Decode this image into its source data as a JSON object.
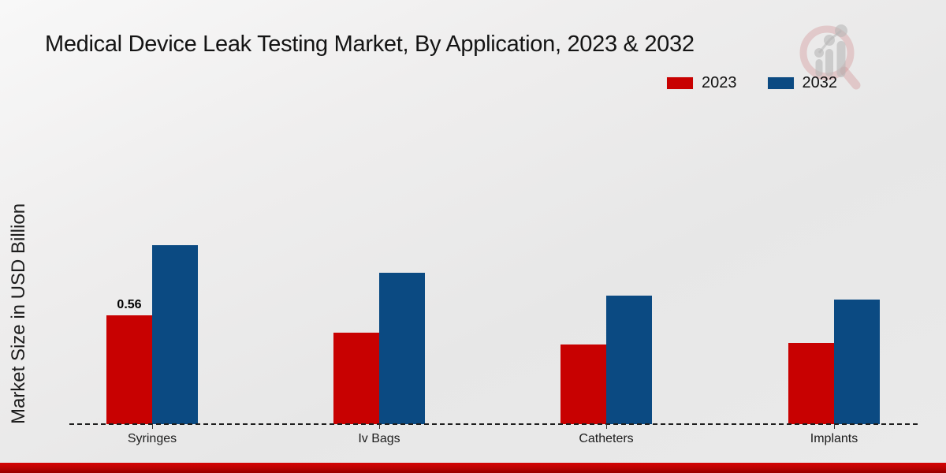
{
  "header": {
    "title": "Medical Device Leak Testing Market, By Application, 2023 & 2032"
  },
  "icons": {
    "watermark": "magnifier-bar-chart-watermark"
  },
  "colors": {
    "series_2023": "#c80101",
    "series_2032": "#0b4a82",
    "footer_accent_top": "#d40404",
    "footer_accent_bottom": "#960000",
    "axis_line": "#1e1e1e",
    "background": "#eaeaea"
  },
  "chart_data": {
    "type": "bar",
    "title": "Medical Device Leak Testing Market, By Application, 2023 & 2032",
    "categories": [
      "Syringes",
      "Iv Bags",
      "Catheters",
      "Implants"
    ],
    "series": [
      {
        "name": "2023",
        "color": "#c80101",
        "values": [
          0.56,
          0.47,
          0.41,
          0.42
        ]
      },
      {
        "name": "2032",
        "color": "#0b4a82",
        "values": [
          0.92,
          0.78,
          0.66,
          0.64
        ]
      }
    ],
    "data_labels": [
      {
        "series_index": 0,
        "category_index": 0,
        "text": "0.56"
      }
    ],
    "xlabel": "",
    "ylabel": "Market Size in USD Billion",
    "ylim": [
      0,
      1.0
    ],
    "grid": false,
    "y_axis_ticks_visible": false,
    "baseline_style": "dashed",
    "legend_position": "top-right"
  }
}
